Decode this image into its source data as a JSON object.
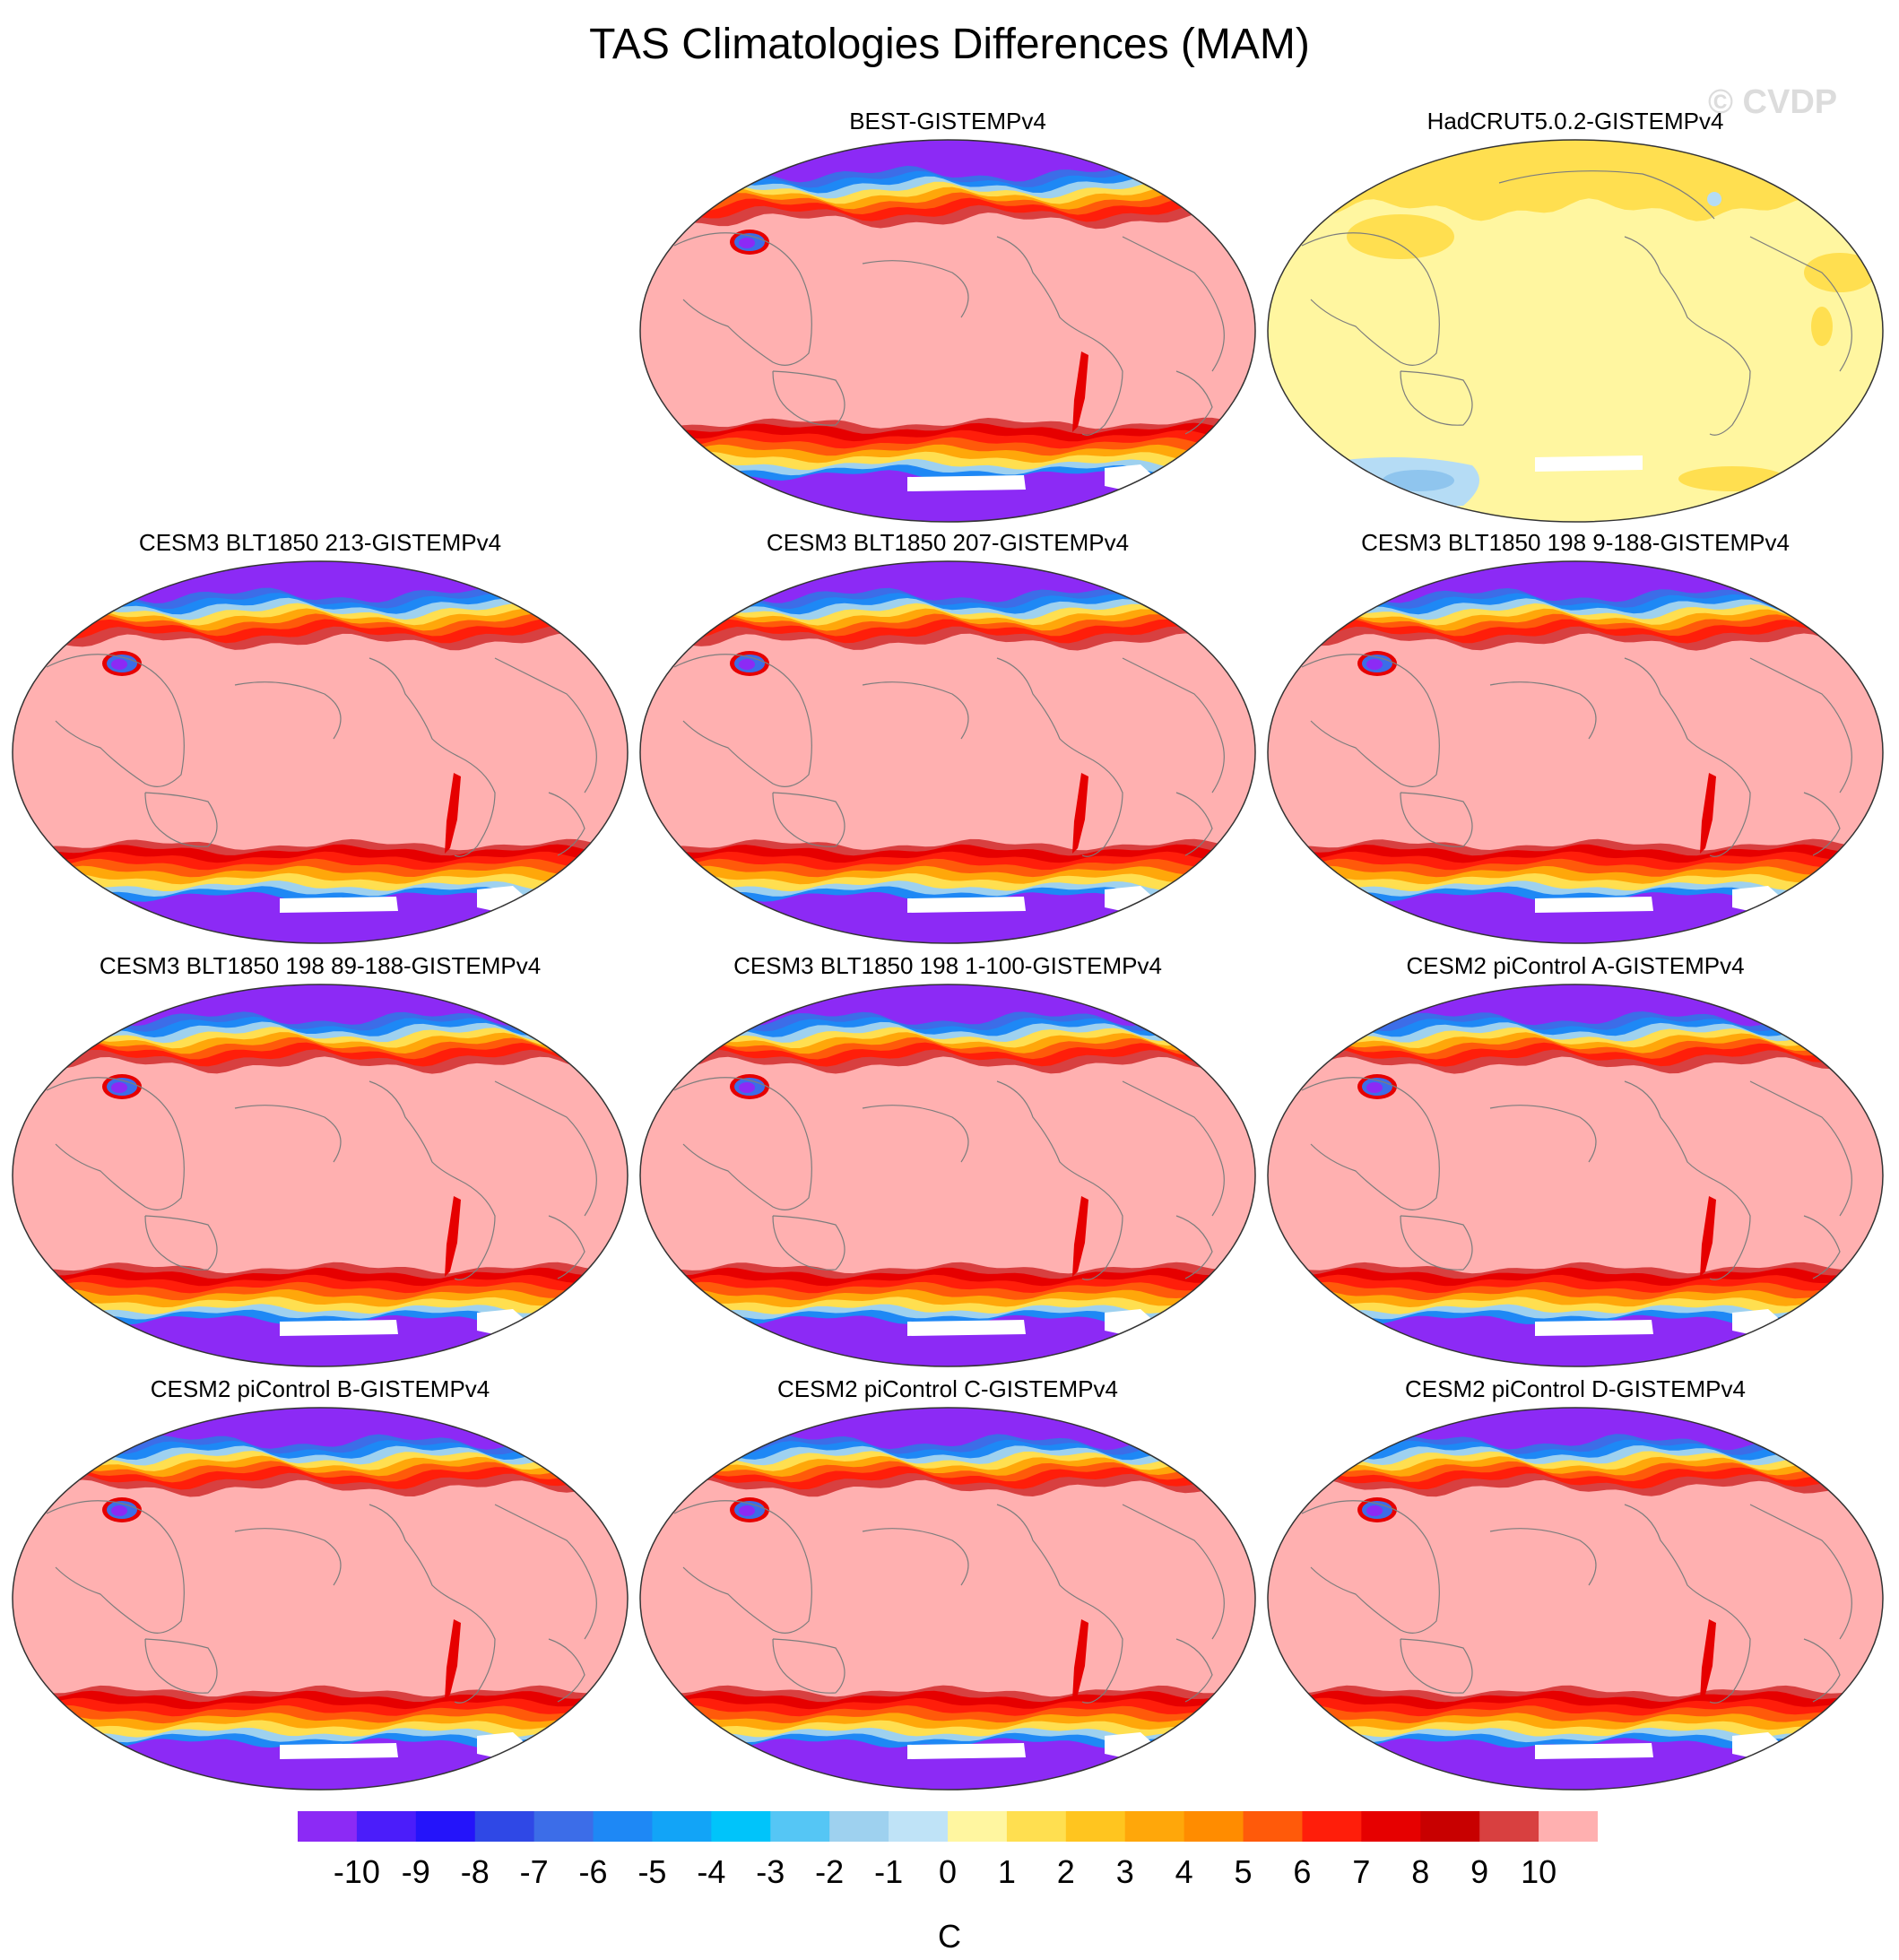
{
  "title": "TAS Climatologies Differences (MAM)",
  "watermark": "© CVDP",
  "units": "C",
  "colors": {
    "pink": "#FFB0B0",
    "purple": "#8C2AF5",
    "paleyellow": "#FFF6A0",
    "yellow": "#FFDF50",
    "lightblue": "#B5DCF5",
    "blue": "#8FC5EE",
    "coast": "#7d7d7d",
    "white": "#FFFFFF"
  },
  "colorbar": {
    "colors": [
      "#8C2AF5",
      "#4B1DFA",
      "#2414FA",
      "#2F48E6",
      "#3C6DE8",
      "#1E88F5",
      "#12A4F7",
      "#00C4FA",
      "#55C6F5",
      "#9ED1EF",
      "#BFE3F7",
      "#FFF6A0",
      "#FFDF50",
      "#FFC51F",
      "#FFA70A",
      "#FF8C00",
      "#FF5A0A",
      "#FF1E0A",
      "#E60000",
      "#C80000",
      "#D84040",
      "#FFB0B0"
    ],
    "labels": [
      "-10",
      "-9",
      "-8",
      "-7",
      "-6",
      "-5",
      "-4",
      "-3",
      "-2",
      "-1",
      "0",
      "1",
      "2",
      "3",
      "4",
      "5",
      "6",
      "7",
      "8",
      "9",
      "10"
    ]
  },
  "panels": [
    {
      "title": "BEST-GISTEMPv4",
      "style": "diff"
    },
    {
      "title": "HadCRUT5.0.2-GISTEMPv4",
      "style": "hadcrut"
    },
    {
      "title": "CESM3 BLT1850 213-GISTEMPv4",
      "style": "diff"
    },
    {
      "title": "CESM3 BLT1850 207-GISTEMPv4",
      "style": "diff"
    },
    {
      "title": "CESM3 BLT1850 198 9-188-GISTEMPv4",
      "style": "diff"
    },
    {
      "title": "CESM3 BLT1850 198 89-188-GISTEMPv4",
      "style": "diff"
    },
    {
      "title": "CESM3 BLT1850 198 1-100-GISTEMPv4",
      "style": "diff"
    },
    {
      "title": "CESM2 piControl A-GISTEMPv4",
      "style": "diff"
    },
    {
      "title": "CESM2 piControl B-GISTEMPv4",
      "style": "diff"
    },
    {
      "title": "CESM2 piControl C-GISTEMPv4",
      "style": "diff"
    },
    {
      "title": "CESM2 piControl D-GISTEMPv4",
      "style": "diff"
    }
  ]
}
